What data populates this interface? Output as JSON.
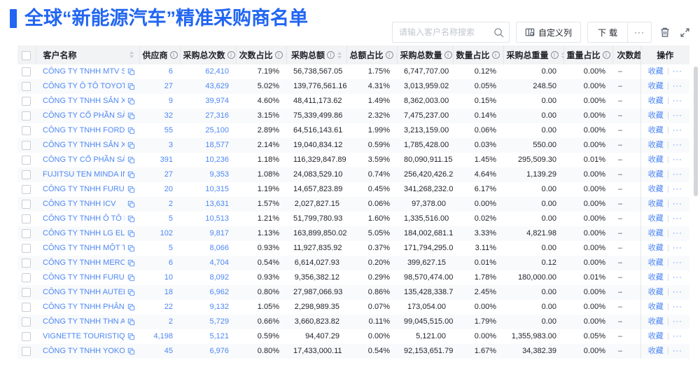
{
  "page": {
    "title": "全球“新能源汽车”精准采购商名单"
  },
  "colors": {
    "accent": "#2266F2",
    "link": "#4D87F5",
    "header-bg": "#F2F3F5",
    "stripe": "#F9FAFB",
    "border": "#E5E6EB",
    "text": "#1D2129",
    "muted": "#86909C"
  },
  "toolbar": {
    "search_placeholder": "请输入客户名称搜索",
    "custom_columns_label": "自定义列",
    "download_label": "下载",
    "more_label": "···"
  },
  "table": {
    "favorite_label": "收藏",
    "row_more_label": "···",
    "columns": [
      {
        "key": "select",
        "label": "",
        "type": "checkbox",
        "info": false,
        "sort": false
      },
      {
        "key": "name",
        "label": "客户名称",
        "info": false,
        "sort": true
      },
      {
        "key": "suppliers",
        "label": "供应商",
        "info": true,
        "sort": true
      },
      {
        "key": "purchase_count",
        "label": "采购总次数",
        "info": true,
        "sort": true
      },
      {
        "key": "count_pct",
        "label": "次数占比",
        "info": true,
        "sort": true
      },
      {
        "key": "amount",
        "label": "采购总额",
        "info": true,
        "sort": true
      },
      {
        "key": "amount_pct",
        "label": "总额占比",
        "info": true,
        "sort": true
      },
      {
        "key": "quantity",
        "label": "采购总数量",
        "info": true,
        "sort": true
      },
      {
        "key": "quantity_pct",
        "label": "数量占比",
        "info": true,
        "sort": true
      },
      {
        "key": "weight",
        "label": "采购总重量",
        "info": true,
        "sort": true
      },
      {
        "key": "weight_pct",
        "label": "重量占比",
        "info": true,
        "sort": true
      },
      {
        "key": "trend",
        "label": "次数趋势",
        "info": false,
        "sort": false
      },
      {
        "key": "actions",
        "label": "操作",
        "info": false,
        "sort": false
      }
    ],
    "rows": [
      {
        "name": "CÔNG TY TNHH MTV SẢN XUẤ...",
        "suppliers": "6",
        "purchase_count": "62,410",
        "count_pct": "7.19%",
        "amount": "56,738,567.05",
        "amount_pct": "1.75%",
        "quantity": "6,747,707.00",
        "quantity_pct": "0.12%",
        "weight": "0.00",
        "weight_pct": "0.00%",
        "trend": "–"
      },
      {
        "name": "CÔNG TY Ô TÔ TOYOTA VIỆT ...",
        "suppliers": "27",
        "purchase_count": "43,629",
        "count_pct": "5.02%",
        "amount": "139,776,561.16",
        "amount_pct": "4.31%",
        "quantity": "3,013,959.02",
        "quantity_pct": "0.05%",
        "weight": "248.50",
        "weight_pct": "0.00%",
        "trend": "–"
      },
      {
        "name": "CÔNG TY TNHH SẢN XUẤT VÀ ...",
        "suppliers": "9",
        "purchase_count": "39,974",
        "count_pct": "4.60%",
        "amount": "48,411,173.62",
        "amount_pct": "1.49%",
        "quantity": "8,362,003.00",
        "quantity_pct": "0.15%",
        "weight": "0.00",
        "weight_pct": "0.00%",
        "trend": "–"
      },
      {
        "name": "CÔNG TY CỔ PHẦN SẢN XUẤT...",
        "suppliers": "32",
        "purchase_count": "27,316",
        "count_pct": "3.15%",
        "amount": "75,339,499.86",
        "amount_pct": "2.32%",
        "quantity": "7,475,237.00",
        "quantity_pct": "0.14%",
        "weight": "0.00",
        "weight_pct": "0.00%",
        "trend": "–"
      },
      {
        "name": "CÔNG TY TNHH FORD VIỆT NAM",
        "suppliers": "55",
        "purchase_count": "25,100",
        "count_pct": "2.89%",
        "amount": "64,516,143.61",
        "amount_pct": "1.99%",
        "quantity": "3,213,159.00",
        "quantity_pct": "0.06%",
        "weight": "0.00",
        "weight_pct": "0.00%",
        "trend": "–"
      },
      {
        "name": "CÔNG TY TNHH SẢN XUẤT VÀ ...",
        "suppliers": "3",
        "purchase_count": "18,577",
        "count_pct": "2.14%",
        "amount": "19,040,834.12",
        "amount_pct": "0.59%",
        "quantity": "1,785,428.00",
        "quantity_pct": "0.03%",
        "weight": "550.00",
        "weight_pct": "0.00%",
        "trend": "–"
      },
      {
        "name": "CÔNG TY CỔ PHẦN SẢN XUẤT...",
        "suppliers": "391",
        "purchase_count": "10,236",
        "count_pct": "1.18%",
        "amount": "116,329,847.89",
        "amount_pct": "3.59%",
        "quantity": "80,090,911.15",
        "quantity_pct": "1.45%",
        "weight": "295,509.30",
        "weight_pct": "0.01%",
        "trend": "–"
      },
      {
        "name": "FUJITSU TEN MINDA INDIA PVT...",
        "suppliers": "27",
        "purchase_count": "9,353",
        "count_pct": "1.08%",
        "amount": "24,083,529.10",
        "amount_pct": "0.74%",
        "quantity": "256,420,426.29",
        "quantity_pct": "4.64%",
        "weight": "1,139.29",
        "weight_pct": "0.00%",
        "trend": "–"
      },
      {
        "name": "CÔNG TY TNHH FURUKAWA A...",
        "suppliers": "20",
        "purchase_count": "10,315",
        "count_pct": "1.19%",
        "amount": "14,657,823.89",
        "amount_pct": "0.45%",
        "quantity": "341,268,232.00",
        "quantity_pct": "6.17%",
        "weight": "0.00",
        "weight_pct": "0.00%",
        "trend": "–"
      },
      {
        "name": "CÔNG TY TNHH ICV",
        "suppliers": "2",
        "purchase_count": "13,631",
        "count_pct": "1.57%",
        "amount": "2,027,827.15",
        "amount_pct": "0.06%",
        "quantity": "97,378.00",
        "quantity_pct": "0.00%",
        "weight": "0.00",
        "weight_pct": "0.00%",
        "trend": "–"
      },
      {
        "name": "CÔNG TY TNHH Ô TÔ MITSUBI...",
        "suppliers": "5",
        "purchase_count": "10,513",
        "count_pct": "1.21%",
        "amount": "51,799,780.93",
        "amount_pct": "1.60%",
        "quantity": "1,335,516.00",
        "quantity_pct": "0.02%",
        "weight": "0.00",
        "weight_pct": "0.00%",
        "trend": "–"
      },
      {
        "name": "CÔNG TY TNHH LG ELECTRON...",
        "suppliers": "102",
        "purchase_count": "9,817",
        "count_pct": "1.13%",
        "amount": "163,899,850.02",
        "amount_pct": "5.05%",
        "quantity": "184,002,681.15",
        "quantity_pct": "3.33%",
        "weight": "4,821.98",
        "weight_pct": "0.00%",
        "trend": "–"
      },
      {
        "name": "CÔNG TY TNHH MỘT THÀNH V...",
        "suppliers": "5",
        "purchase_count": "8,066",
        "count_pct": "0.93%",
        "amount": "11,927,835.92",
        "amount_pct": "0.37%",
        "quantity": "171,794,295.00",
        "quantity_pct": "3.11%",
        "weight": "0.00",
        "weight_pct": "0.00%",
        "trend": "–"
      },
      {
        "name": "CÔNG TY TNHH MERCEDES–B...",
        "suppliers": "6",
        "purchase_count": "4,704",
        "count_pct": "0.54%",
        "amount": "6,614,027.93",
        "amount_pct": "0.20%",
        "quantity": "399,627.15",
        "quantity_pct": "0.01%",
        "weight": "0.12",
        "weight_pct": "0.00%",
        "trend": "–"
      },
      {
        "name": "CÔNG TY TNHH FURUKAWA A...",
        "suppliers": "10",
        "purchase_count": "8,092",
        "count_pct": "0.93%",
        "amount": "9,356,382.12",
        "amount_pct": "0.29%",
        "quantity": "98,570,474.00",
        "quantity_pct": "1.78%",
        "weight": "180,000.00",
        "weight_pct": "0.01%",
        "trend": "–"
      },
      {
        "name": "CÔNG TY TNHH AUTEL VIỆT N...",
        "suppliers": "18",
        "purchase_count": "6,962",
        "count_pct": "0.80%",
        "amount": "27,987,066.93",
        "amount_pct": "0.86%",
        "quantity": "135,428,338.71",
        "quantity_pct": "2.45%",
        "weight": "0.00",
        "weight_pct": "0.00%",
        "trend": "–"
      },
      {
        "name": "CÔNG TY TNHH PHÂN PHỐI T...",
        "suppliers": "22",
        "purchase_count": "9,132",
        "count_pct": "1.05%",
        "amount": "2,298,989.35",
        "amount_pct": "0.07%",
        "quantity": "173,054.00",
        "quantity_pct": "0.00%",
        "weight": "0.00",
        "weight_pct": "0.00%",
        "trend": "–"
      },
      {
        "name": "CÔNG TY TNHH THN AUTOPAR...",
        "suppliers": "2",
        "purchase_count": "5,729",
        "count_pct": "0.66%",
        "amount": "3,660,823.82",
        "amount_pct": "0.11%",
        "quantity": "99,045,515.00",
        "quantity_pct": "1.79%",
        "weight": "0.00",
        "weight_pct": "0.00%",
        "trend": "–"
      },
      {
        "name": "VIGNETTE TOURISTIQUE G UNI...",
        "suppliers": "4,198",
        "purchase_count": "5,121",
        "count_pct": "0.59%",
        "amount": "94,407.29",
        "amount_pct": "0.00%",
        "quantity": "5,121.00",
        "quantity_pct": "0.00%",
        "weight": "1,355,983.00",
        "weight_pct": "0.05%",
        "trend": "–"
      },
      {
        "name": "CÔNG TY TNHH YOKOWO VIỆT...",
        "suppliers": "45",
        "purchase_count": "6,976",
        "count_pct": "0.80%",
        "amount": "17,433,000.11",
        "amount_pct": "0.54%",
        "quantity": "92,153,651.79",
        "quantity_pct": "1.67%",
        "weight": "34,382.39",
        "weight_pct": "0.00%",
        "trend": "–"
      }
    ]
  }
}
